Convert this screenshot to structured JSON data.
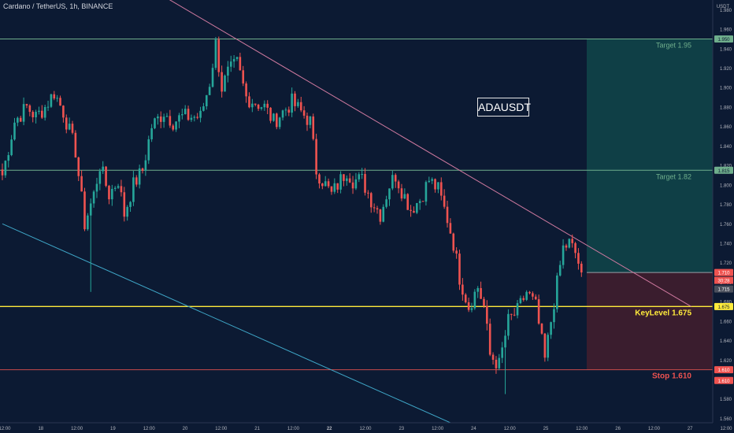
{
  "header": {
    "symbol_title": "Cardano / TetherUS, 1h, BINANCE"
  },
  "price_axis": {
    "currency": "USDT"
  },
  "annotations": {
    "ticker_label": "ADAUSDT",
    "target1_label": "Target 1.95",
    "target2_label": "Target 1.82",
    "keylevel_label": "KeyLevel 1.675",
    "stop_label": "Stop 1.610",
    "current_time_left": "30:28"
  },
  "colors": {
    "background": "#0c1a33",
    "candle_up": "#26a69a",
    "candle_down": "#ef5350",
    "target_line": "#6fae8c",
    "keylevel_line": "#ffeb3b",
    "stop_line": "#c84b4b",
    "profit_zone": "#0f3f46",
    "loss_zone": "#3a1d2e",
    "trend_line_upper": "#d07aa0",
    "trend_line_lower": "#3fa7c8"
  },
  "chart_data": {
    "type": "candlestick",
    "title": "Cardano / TetherUS, 1h, BINANCE",
    "y_unit": "USDT",
    "ylim": [
      1.545,
      1.99
    ],
    "y_ticks": [
      1.56,
      1.58,
      1.6,
      1.62,
      1.64,
      1.66,
      1.68,
      1.7,
      1.72,
      1.74,
      1.76,
      1.78,
      1.8,
      1.82,
      1.84,
      1.86,
      1.88,
      1.9,
      1.92,
      1.94,
      1.96,
      1.98
    ],
    "x_tick_labels": [
      "12:00",
      "18",
      "12:00",
      "19",
      "12:00",
      "20",
      "12:00",
      "21",
      "12:00",
      "22",
      "12:00",
      "23",
      "12:00",
      "24",
      "12:00",
      "25",
      "12:00",
      "26",
      "12:00",
      "27",
      "12:00"
    ],
    "levels": [
      {
        "label": "Target 1.95",
        "price": 1.95
      },
      {
        "label": "Target 1.82",
        "price": 1.815
      },
      {
        "label": "KeyLevel 1.675",
        "price": 1.675
      },
      {
        "label": "Stop 1.610",
        "price": 1.61
      }
    ],
    "axis_price_tags": [
      {
        "text": "1.950",
        "price": 1.95,
        "bg": "#6fae8c",
        "fg": "#0c1a33"
      },
      {
        "text": "1.815",
        "price": 1.815,
        "bg": "#6fae8c",
        "fg": "#0c1a33"
      },
      {
        "text": "1.710",
        "price": 1.71,
        "bg": "#ef5350",
        "fg": "#ffffff"
      },
      {
        "text": "1.715",
        "price": 1.693,
        "bg": "#4a4f5c",
        "fg": "#ffffff"
      },
      {
        "text": "1.675",
        "price": 1.675,
        "bg": "#ffeb3b",
        "fg": "#0c1a33"
      },
      {
        "text": "1.610",
        "price": 1.61,
        "bg": "#ef5350",
        "fg": "#ffffff"
      },
      {
        "text": "1.610",
        "price": 1.599,
        "bg": "#ef5350",
        "fg": "#ffffff"
      }
    ],
    "trade_setup": {
      "entry": 1.71,
      "target": 1.95,
      "stop": 1.61
    },
    "trend_lines": [
      {
        "name": "upper",
        "from": {
          "bar": 17,
          "price": 2.06
        },
        "to": {
          "bar": 226,
          "price": 1.675
        }
      },
      {
        "name": "lower",
        "from": {
          "bar": 0,
          "price": 1.76
        },
        "to": {
          "bar": 151,
          "price": 1.55
        }
      }
    ],
    "ohlc_keypoints": [
      [
        0,
        1.81
      ],
      [
        4,
        1.865
      ],
      [
        8,
        1.88
      ],
      [
        11,
        1.87
      ],
      [
        14,
        1.88
      ],
      [
        17,
        1.895
      ],
      [
        20,
        1.875
      ],
      [
        24,
        1.835
      ],
      [
        27,
        1.76
      ],
      [
        30,
        1.79
      ],
      [
        32,
        1.82
      ],
      [
        35,
        1.79
      ],
      [
        38,
        1.805
      ],
      [
        40,
        1.77
      ],
      [
        43,
        1.8
      ],
      [
        46,
        1.815
      ],
      [
        49,
        1.86
      ],
      [
        53,
        1.875
      ],
      [
        56,
        1.865
      ],
      [
        59,
        1.87
      ],
      [
        62,
        1.87
      ],
      [
        65,
        1.87
      ],
      [
        68,
        1.905
      ],
      [
        70,
        1.945
      ],
      [
        72,
        1.9
      ],
      [
        74,
        1.915
      ],
      [
        77,
        1.925
      ],
      [
        80,
        1.89
      ],
      [
        83,
        1.885
      ],
      [
        86,
        1.88
      ],
      [
        89,
        1.865
      ],
      [
        92,
        1.875
      ],
      [
        95,
        1.885
      ],
      [
        98,
        1.875
      ],
      [
        101,
        1.865
      ],
      [
        103,
        1.815
      ],
      [
        106,
        1.8
      ],
      [
        108,
        1.79
      ],
      [
        110,
        1.8
      ],
      [
        113,
        1.815
      ],
      [
        115,
        1.805
      ],
      [
        118,
        1.805
      ],
      [
        121,
        1.785
      ],
      [
        124,
        1.77
      ],
      [
        127,
        1.8
      ],
      [
        129,
        1.81
      ],
      [
        131,
        1.795
      ],
      [
        134,
        1.775
      ],
      [
        137,
        1.785
      ],
      [
        140,
        1.805
      ],
      [
        143,
        1.795
      ],
      [
        146,
        1.765
      ],
      [
        148,
        1.74
      ],
      [
        150,
        1.705
      ],
      [
        153,
        1.675
      ],
      [
        156,
        1.695
      ],
      [
        158,
        1.675
      ],
      [
        160,
        1.625
      ],
      [
        163,
        1.615
      ],
      [
        166,
        1.66
      ],
      [
        169,
        1.67
      ],
      [
        172,
        1.69
      ],
      [
        175,
        1.675
      ],
      [
        178,
        1.62
      ],
      [
        181,
        1.68
      ],
      [
        184,
        1.735
      ],
      [
        186,
        1.74
      ],
      [
        188,
        1.73
      ],
      [
        190,
        1.71
      ]
    ],
    "extreme_wicks": [
      {
        "bar": 29,
        "price": 1.69
      },
      {
        "bar": 165,
        "price": 1.585
      },
      {
        "bar": 70,
        "price": 1.952
      },
      {
        "bar": 187,
        "price": 1.745
      }
    ]
  }
}
